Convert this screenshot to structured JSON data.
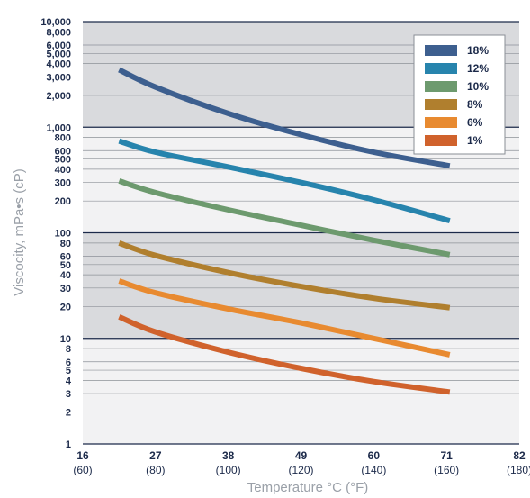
{
  "chart_data": {
    "type": "line",
    "xlabel": "Temperature °C (°F)",
    "ylabel": "Viscocity, mPa•s (cP)",
    "yscale": "log",
    "ylim": [
      1,
      10000
    ],
    "xlim": [
      16,
      82
    ],
    "x_ticks": [
      {
        "c": "16",
        "f": "(60)",
        "value": 16
      },
      {
        "c": "27",
        "f": "(80)",
        "value": 27
      },
      {
        "c": "38",
        "f": "(100)",
        "value": 38
      },
      {
        "c": "49",
        "f": "(120)",
        "value": 49
      },
      {
        "c": "60",
        "f": "(140)",
        "value": 60
      },
      {
        "c": "71",
        "f": "(160)",
        "value": 71
      },
      {
        "c": "82",
        "f": "(180)",
        "value": 82
      }
    ],
    "y_ticks": [
      {
        "label": "10,000",
        "value": 10000
      },
      {
        "label": "8,000",
        "value": 8000
      },
      {
        "label": "6,000",
        "value": 6000
      },
      {
        "label": "5,000",
        "value": 5000
      },
      {
        "label": "4,000",
        "value": 4000
      },
      {
        "label": "3,000",
        "value": 3000
      },
      {
        "label": "2,000",
        "value": 2000
      },
      {
        "label": "1,000",
        "value": 1000
      },
      {
        "label": "800",
        "value": 800
      },
      {
        "label": "600",
        "value": 600
      },
      {
        "label": "500",
        "value": 500
      },
      {
        "label": "400",
        "value": 400
      },
      {
        "label": "300",
        "value": 300
      },
      {
        "label": "200",
        "value": 200
      },
      {
        "label": "100",
        "value": 100
      },
      {
        "label": "80",
        "value": 80
      },
      {
        "label": "60",
        "value": 60
      },
      {
        "label": "50",
        "value": 50
      },
      {
        "label": "40",
        "value": 40
      },
      {
        "label": "30",
        "value": 30
      },
      {
        "label": "20",
        "value": 20
      },
      {
        "label": "10",
        "value": 10
      },
      {
        "label": "8",
        "value": 8
      },
      {
        "label": "6",
        "value": 6
      },
      {
        "label": "5",
        "value": 5
      },
      {
        "label": "4",
        "value": 4
      },
      {
        "label": "3",
        "value": 3
      },
      {
        "label": "2",
        "value": 2
      },
      {
        "label": "1",
        "value": 1
      }
    ],
    "grid": true,
    "legend_position": "top-right",
    "series": [
      {
        "name": "18%",
        "color": "#3d5f8f",
        "x": [
          21.5,
          27,
          38,
          49,
          60,
          71.5
        ],
        "y": [
          3500,
          2400,
          1350,
          850,
          580,
          430
        ]
      },
      {
        "name": "12%",
        "color": "#2784ad",
        "x": [
          21.5,
          27,
          38,
          49,
          60,
          71.5
        ],
        "y": [
          740,
          580,
          420,
          300,
          205,
          130
        ]
      },
      {
        "name": "10%",
        "color": "#6d9a6e",
        "x": [
          21.5,
          27,
          38,
          49,
          60,
          71.5
        ],
        "y": [
          310,
          240,
          165,
          118,
          85,
          62
        ]
      },
      {
        "name": "8%",
        "color": "#b07f2e",
        "x": [
          21.5,
          27,
          38,
          49,
          60,
          71.5
        ],
        "y": [
          80,
          61,
          42,
          31,
          24,
          19.5
        ]
      },
      {
        "name": "6%",
        "color": "#e88a30",
        "x": [
          21.5,
          27,
          38,
          49,
          60,
          71.5
        ],
        "y": [
          35,
          27,
          19,
          14,
          10,
          7
        ]
      },
      {
        "name": "1%",
        "color": "#d0622c",
        "x": [
          21.5,
          27,
          38,
          49,
          60,
          71.5
        ],
        "y": [
          16,
          11.5,
          7.4,
          5.2,
          3.9,
          3.1
        ]
      }
    ]
  }
}
